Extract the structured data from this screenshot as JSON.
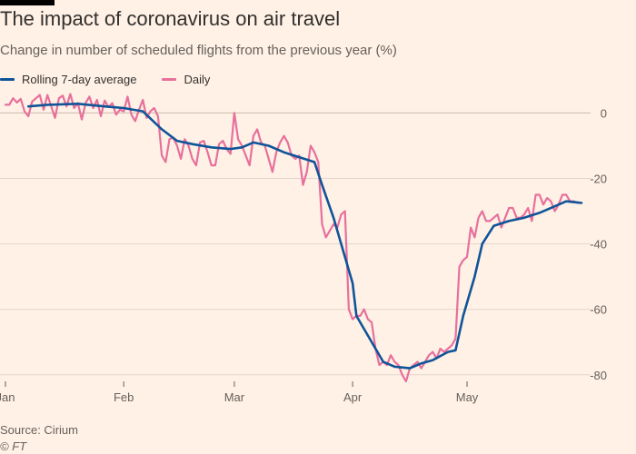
{
  "header": {
    "title": "The impact of coronavirus on air travel",
    "subtitle": "Change in number of scheduled flights from the previous year (%)"
  },
  "footer": {
    "source": "Source: Cirium",
    "copyright": "© FT"
  },
  "colors": {
    "background": "#fff1e5",
    "rolling": "#0f5499",
    "daily": "#e7709c",
    "grid": "#e2d6cc",
    "zero_line": "#c9b9ac",
    "axis_text": "#66605c"
  },
  "chart_data": {
    "type": "line",
    "title": "The impact of coronavirus on air travel",
    "subtitle": "Change in number of scheduled flights from the previous year (%)",
    "xlabel": "",
    "ylabel": "",
    "x_ticks": [
      {
        "label": "Jan",
        "day": 1
      },
      {
        "label": "Feb",
        "day": 32
      },
      {
        "label": "Mar",
        "day": 61
      },
      {
        "label": "Apr",
        "day": 92
      },
      {
        "label": "May",
        "day": 122
      }
    ],
    "y_ticks": [
      0,
      -20,
      -40,
      -60,
      -80
    ],
    "xlim": [
      1,
      152
    ],
    "ylim": [
      -82,
      4
    ],
    "grid": true,
    "legend_position": "top-left",
    "series": [
      {
        "name": "Rolling 7-day average",
        "color": "#0f5499",
        "points": [
          [
            7,
            2
          ],
          [
            12,
            2.5
          ],
          [
            20,
            2.8
          ],
          [
            27,
            2
          ],
          [
            32,
            1.5
          ],
          [
            37,
            0.5
          ],
          [
            42,
            -5
          ],
          [
            46,
            -8.5
          ],
          [
            50,
            -9.5
          ],
          [
            55,
            -10.5
          ],
          [
            60,
            -11
          ],
          [
            63,
            -10.5
          ],
          [
            66,
            -9
          ],
          [
            70,
            -10
          ],
          [
            74,
            -12
          ],
          [
            78,
            -13.5
          ],
          [
            82,
            -15
          ],
          [
            84,
            -22
          ],
          [
            87,
            -32
          ],
          [
            89,
            -40
          ],
          [
            92,
            -52
          ],
          [
            93,
            -62
          ],
          [
            96,
            -68
          ],
          [
            100,
            -76
          ],
          [
            103,
            -77.5
          ],
          [
            107,
            -78
          ],
          [
            110,
            -76.5
          ],
          [
            113,
            -75.5
          ],
          [
            117,
            -73
          ],
          [
            119,
            -72.5
          ],
          [
            121,
            -62
          ],
          [
            124,
            -50
          ],
          [
            126,
            -40
          ],
          [
            129,
            -34.5
          ],
          [
            133,
            -33
          ],
          [
            137,
            -32
          ],
          [
            141,
            -30.5
          ],
          [
            145,
            -28.5
          ],
          [
            148,
            -27
          ],
          [
            152,
            -27.5
          ]
        ]
      },
      {
        "name": "Daily",
        "color": "#e7709c",
        "points": [
          [
            1,
            2.5
          ],
          [
            2,
            2.5
          ],
          [
            3,
            4.5
          ],
          [
            4,
            3.2
          ],
          [
            5,
            4.3
          ],
          [
            6,
            0.5
          ],
          [
            7,
            -1
          ],
          [
            8,
            3.5
          ],
          [
            9,
            4.5
          ],
          [
            10,
            5.5
          ],
          [
            11,
            1
          ],
          [
            12,
            5.5
          ],
          [
            13,
            2
          ],
          [
            14,
            -1.5
          ],
          [
            15,
            4.5
          ],
          [
            16,
            5.3
          ],
          [
            17,
            2
          ],
          [
            18,
            5.8
          ],
          [
            19,
            1.5
          ],
          [
            20,
            3
          ],
          [
            21,
            -2
          ],
          [
            22,
            3
          ],
          [
            23,
            5
          ],
          [
            24,
            1.5
          ],
          [
            25,
            4
          ],
          [
            26,
            -1
          ],
          [
            27,
            3.8
          ],
          [
            28,
            1.8
          ],
          [
            29,
            3
          ],
          [
            30,
            -0.5
          ],
          [
            31,
            1
          ],
          [
            32,
            0.5
          ],
          [
            33,
            5
          ],
          [
            34,
            -0.5
          ],
          [
            35,
            -2.5
          ],
          [
            36,
            1
          ],
          [
            37,
            4
          ],
          [
            38,
            -1.5
          ],
          [
            39,
            0.5
          ],
          [
            40,
            1.5
          ],
          [
            41,
            -1
          ],
          [
            42,
            -13
          ],
          [
            43,
            -15
          ],
          [
            44,
            -8
          ],
          [
            45,
            -7.5
          ],
          [
            46,
            -10
          ],
          [
            47,
            -14
          ],
          [
            48,
            -8
          ],
          [
            49,
            -10
          ],
          [
            50,
            -14
          ],
          [
            51,
            -16
          ],
          [
            52,
            -9
          ],
          [
            53,
            -8.5
          ],
          [
            54,
            -12
          ],
          [
            55,
            -16
          ],
          [
            56,
            -16
          ],
          [
            57,
            -9.5
          ],
          [
            58,
            -8.5
          ],
          [
            59,
            -11
          ],
          [
            60,
            -12.5
          ],
          [
            61,
            0
          ],
          [
            62,
            -8
          ],
          [
            63,
            -10
          ],
          [
            64,
            -13
          ],
          [
            65,
            -16
          ],
          [
            66,
            -7
          ],
          [
            67,
            -5
          ],
          [
            68,
            -9
          ],
          [
            69,
            -10
          ],
          [
            70,
            -14
          ],
          [
            71,
            -18
          ],
          [
            72,
            -12
          ],
          [
            73,
            -9
          ],
          [
            74,
            -7
          ],
          [
            75,
            -9
          ],
          [
            76,
            -13
          ],
          [
            77,
            -14
          ],
          [
            78,
            -13
          ],
          [
            79,
            -22
          ],
          [
            80,
            -18
          ],
          [
            81,
            -10
          ],
          [
            82,
            -12
          ],
          [
            83,
            -15
          ],
          [
            84,
            -34
          ],
          [
            85,
            -38
          ],
          [
            86,
            -36
          ],
          [
            87,
            -34
          ],
          [
            88,
            -35
          ],
          [
            89,
            -31
          ],
          [
            90,
            -30
          ],
          [
            91,
            -60
          ],
          [
            92,
            -63
          ],
          [
            93,
            -62
          ],
          [
            94,
            -62
          ],
          [
            95,
            -60
          ],
          [
            96,
            -63
          ],
          [
            97,
            -64
          ],
          [
            98,
            -72
          ],
          [
            99,
            -77
          ],
          [
            100,
            -76
          ],
          [
            101,
            -77
          ],
          [
            102,
            -74
          ],
          [
            103,
            -76
          ],
          [
            104,
            -77
          ],
          [
            105,
            -80
          ],
          [
            106,
            -82
          ],
          [
            107,
            -78
          ],
          [
            108,
            -77
          ],
          [
            109,
            -76
          ],
          [
            110,
            -78
          ],
          [
            111,
            -76
          ],
          [
            112,
            -74
          ],
          [
            113,
            -73
          ],
          [
            114,
            -75
          ],
          [
            115,
            -72
          ],
          [
            116,
            -73
          ],
          [
            117,
            -72
          ],
          [
            118,
            -71
          ],
          [
            119,
            -69
          ],
          [
            120,
            -47
          ],
          [
            121,
            -45
          ],
          [
            122,
            -44
          ],
          [
            123,
            -35
          ],
          [
            124,
            -38
          ],
          [
            125,
            -32
          ],
          [
            126,
            -30
          ],
          [
            127,
            -33
          ],
          [
            128,
            -33
          ],
          [
            129,
            -32
          ],
          [
            130,
            -31
          ],
          [
            131,
            -35
          ],
          [
            132,
            -32
          ],
          [
            133,
            -29
          ],
          [
            134,
            -29
          ],
          [
            135,
            -32
          ],
          [
            136,
            -32
          ],
          [
            137,
            -31
          ],
          [
            138,
            -29
          ],
          [
            139,
            -33
          ],
          [
            140,
            -25
          ],
          [
            141,
            -25
          ],
          [
            142,
            -28
          ],
          [
            143,
            -26
          ],
          [
            144,
            -27
          ],
          [
            145,
            -30
          ],
          [
            146,
            -28
          ],
          [
            147,
            -25
          ],
          [
            148,
            -25
          ],
          [
            149,
            -27
          ],
          [
            150,
            -27
          ],
          [
            151,
            -27.5
          ]
        ]
      }
    ]
  }
}
